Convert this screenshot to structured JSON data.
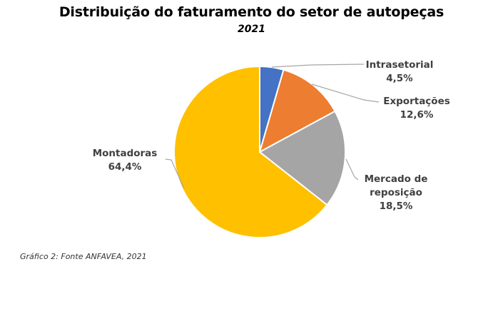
{
  "chart_data": {
    "type": "pie",
    "title": "Distribuição do faturamento do setor de autopeças",
    "subtitle": "2021",
    "categories": [
      "Intrasetorial",
      "Exportações",
      "Mercado de reposição",
      "Montadoras"
    ],
    "values": [
      4.5,
      12.6,
      18.5,
      64.4
    ],
    "value_labels": [
      "4,5%",
      "12,6%",
      "18,5%",
      "64,4%"
    ],
    "colors": [
      "#4472C4",
      "#ED7D31",
      "#A5A5A5",
      "#FFC000"
    ],
    "start_angle_deg": 0,
    "direction": "clockwise",
    "legend": "none (data labels with leader lines)"
  },
  "labels": {
    "intrasetorial": {
      "name": "Intrasetorial",
      "value": "4,5%"
    },
    "exportacoes": {
      "name": "Exportações",
      "value": "12,6%"
    },
    "mercado": {
      "name1": "Mercado de",
      "name2": "reposição",
      "value": "18,5%"
    },
    "montadoras": {
      "name": "Montadoras",
      "value": "64,4%"
    }
  },
  "caption": "Gráfico 2: Fonte ANFAVEA, 2021"
}
